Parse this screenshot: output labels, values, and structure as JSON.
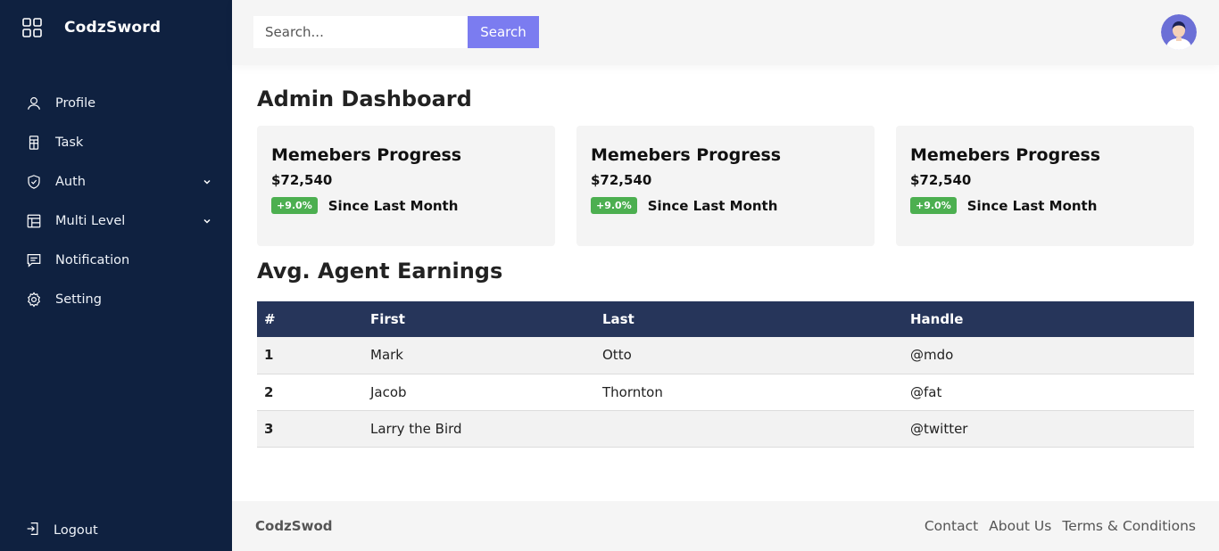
{
  "sidebar": {
    "brand": "CodzSword",
    "items": [
      {
        "label": "Profile",
        "icon": "user-icon"
      },
      {
        "label": "Task",
        "icon": "task-icon"
      },
      {
        "label": "Auth",
        "icon": "shield-icon",
        "has_submenu": true
      },
      {
        "label": "Multi Level",
        "icon": "layout-icon",
        "has_submenu": true
      },
      {
        "label": "Notification",
        "icon": "message-icon"
      },
      {
        "label": "Setting",
        "icon": "gear-icon"
      }
    ],
    "logout": {
      "label": "Logout",
      "icon": "logout-icon"
    }
  },
  "header": {
    "search": {
      "placeholder": "Search...",
      "value": "",
      "button_label": "Search"
    }
  },
  "main": {
    "title": "Admin Dashboard",
    "cards": [
      {
        "title": "Memebers Progress",
        "value": "$72,540",
        "badge": "+9.0%",
        "since": "Since Last Month"
      },
      {
        "title": "Memebers Progress",
        "value": "$72,540",
        "badge": "+9.0%",
        "since": "Since Last Month"
      },
      {
        "title": "Memebers Progress",
        "value": "$72,540",
        "badge": "+9.0%",
        "since": "Since Last Month"
      }
    ],
    "section_title": "Avg. Agent Earnings",
    "table": {
      "headers": [
        "#",
        "First",
        "Last",
        "Handle"
      ],
      "rows": [
        [
          "1",
          "Mark",
          "Otto",
          "@mdo"
        ],
        [
          "2",
          "Jacob",
          "Thornton",
          "@fat"
        ],
        [
          "3",
          "Larry the Bird",
          "",
          "@twitter"
        ]
      ]
    }
  },
  "footer": {
    "copyright": "CodzSwod",
    "links": [
      "Contact",
      "About Us",
      "Terms & Conditions"
    ]
  },
  "colors": {
    "sidebar_bg": "#0f2140",
    "accent": "#7b7cf0",
    "table_header": "#26355a",
    "badge_green": "#4caf50"
  }
}
